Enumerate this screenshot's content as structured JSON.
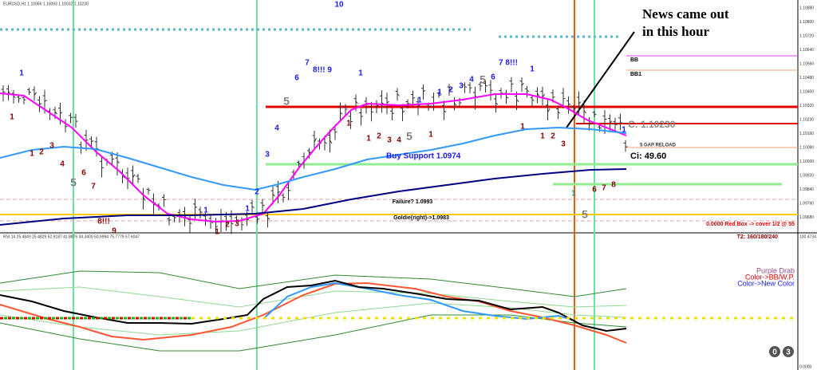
{
  "header": {
    "symbol": "EURUSD,H1 1.10066 1.10093 1.10032 1.10230"
  },
  "annotations": {
    "news": [
      "News came out",
      "in this hour"
    ],
    "buy_support": "Buy Support 1.0974",
    "failure": "Failure? 1.0993",
    "goldie": "Goldie(right)->1.0983",
    "bb": "BB",
    "bb1": "BB1",
    "close": "C: 1.10230",
    "ci": "Ci: 49.60",
    "gap": "5 GAP RELOAD",
    "red_box": "0.0000 Red Box -> cover 1/2 @ 55",
    "t2": "T2: 160/180/240"
  },
  "counts": [
    {
      "label": "1",
      "color": "#1a1aff"
    },
    {
      "label": "1",
      "color": "#8b0000"
    },
    {
      "label": "1",
      "color": "#8b0000"
    },
    {
      "label": "2",
      "color": "#8b0000"
    },
    {
      "label": "3",
      "color": "#8b0000"
    },
    {
      "label": "4",
      "color": "#8b0000"
    },
    {
      "label": "6",
      "color": "#8b0000"
    },
    {
      "label": "5",
      "color": "#808080"
    },
    {
      "label": "7",
      "color": "#8b0000"
    },
    {
      "label": "8!!!",
      "color": "#8b0000"
    },
    {
      "label": "9",
      "color": "#8b0000"
    },
    {
      "label": "1",
      "color": "#8b0000"
    },
    {
      "label": "2",
      "color": "#8b0000"
    },
    {
      "label": "3",
      "color": "#8b0000"
    },
    {
      "label": "1",
      "color": "#1a1aff"
    },
    {
      "label": "1",
      "color": "#1a1aff"
    },
    {
      "label": "2",
      "color": "#1a1aff"
    },
    {
      "label": "3",
      "color": "#1a1aff"
    },
    {
      "label": "4",
      "color": "#1a1aff"
    },
    {
      "label": "5",
      "color": "#808080"
    },
    {
      "label": "6",
      "color": "#1a1aff"
    },
    {
      "label": "7",
      "color": "#1a1aff"
    },
    {
      "label": "8!!! 9",
      "color": "#1a1aff"
    },
    {
      "label": "10",
      "color": "#1a1aff"
    },
    {
      "label": "1",
      "color": "#1a1aff"
    },
    {
      "label": "1",
      "color": "#8b0000"
    },
    {
      "label": "1",
      "color": "#8b0000"
    },
    {
      "label": "2",
      "color": "#8b0000"
    },
    {
      "label": "3",
      "color": "#8b0000"
    },
    {
      "label": "4",
      "color": "#8b0000"
    },
    {
      "label": "5",
      "color": "#808080"
    },
    {
      "label": "1",
      "color": "#8b0000"
    },
    {
      "label": "1",
      "color": "#1a1aff"
    },
    {
      "label": "1",
      "color": "#1a1aff"
    },
    {
      "label": "2",
      "color": "#1a1aff"
    },
    {
      "label": "3",
      "color": "#1a1aff"
    },
    {
      "label": "4",
      "color": "#1a1aff"
    },
    {
      "label": "5",
      "color": "#808080"
    },
    {
      "label": "6",
      "color": "#1a1aff"
    },
    {
      "label": "7 8!!!",
      "color": "#1a1aff"
    },
    {
      "label": "1",
      "color": "#1a1aff"
    },
    {
      "label": "1",
      "color": "#8b0000"
    },
    {
      "label": "1",
      "color": "#8b0000"
    },
    {
      "label": "2",
      "color": "#8b0000"
    },
    {
      "label": "3",
      "color": "#8b0000"
    },
    {
      "label": "1",
      "color": "#2e8b57"
    },
    {
      "label": "6",
      "color": "#8b0000"
    },
    {
      "label": "7",
      "color": "#8b0000"
    },
    {
      "label": "8",
      "color": "#8b0000"
    },
    {
      "label": "5",
      "color": "#808080"
    },
    {
      "label": "1",
      "color": "#1a1aff"
    }
  ],
  "price_axis": [
    "1.10880",
    "1.10800",
    "1.10720",
    "1.10640",
    "1.10560",
    "1.10480",
    "1.10400",
    "1.10320",
    "1.10230",
    "1.10160",
    "1.10080",
    "1.10000",
    "1.09920",
    "1.09840",
    "1.09760",
    "1.09680"
  ],
  "rsi_header": "RSI 14  25.4849  25.4829  52.9187  41.8876  34.3400  50.6994  75.7779  57.6047",
  "rsi_axis": [
    "100.4734",
    "0.0000"
  ],
  "legend": [
    "Purple Drab",
    "Color->BB/W.P.",
    "Color->New Color"
  ],
  "badges": [
    "0",
    "3"
  ]
}
